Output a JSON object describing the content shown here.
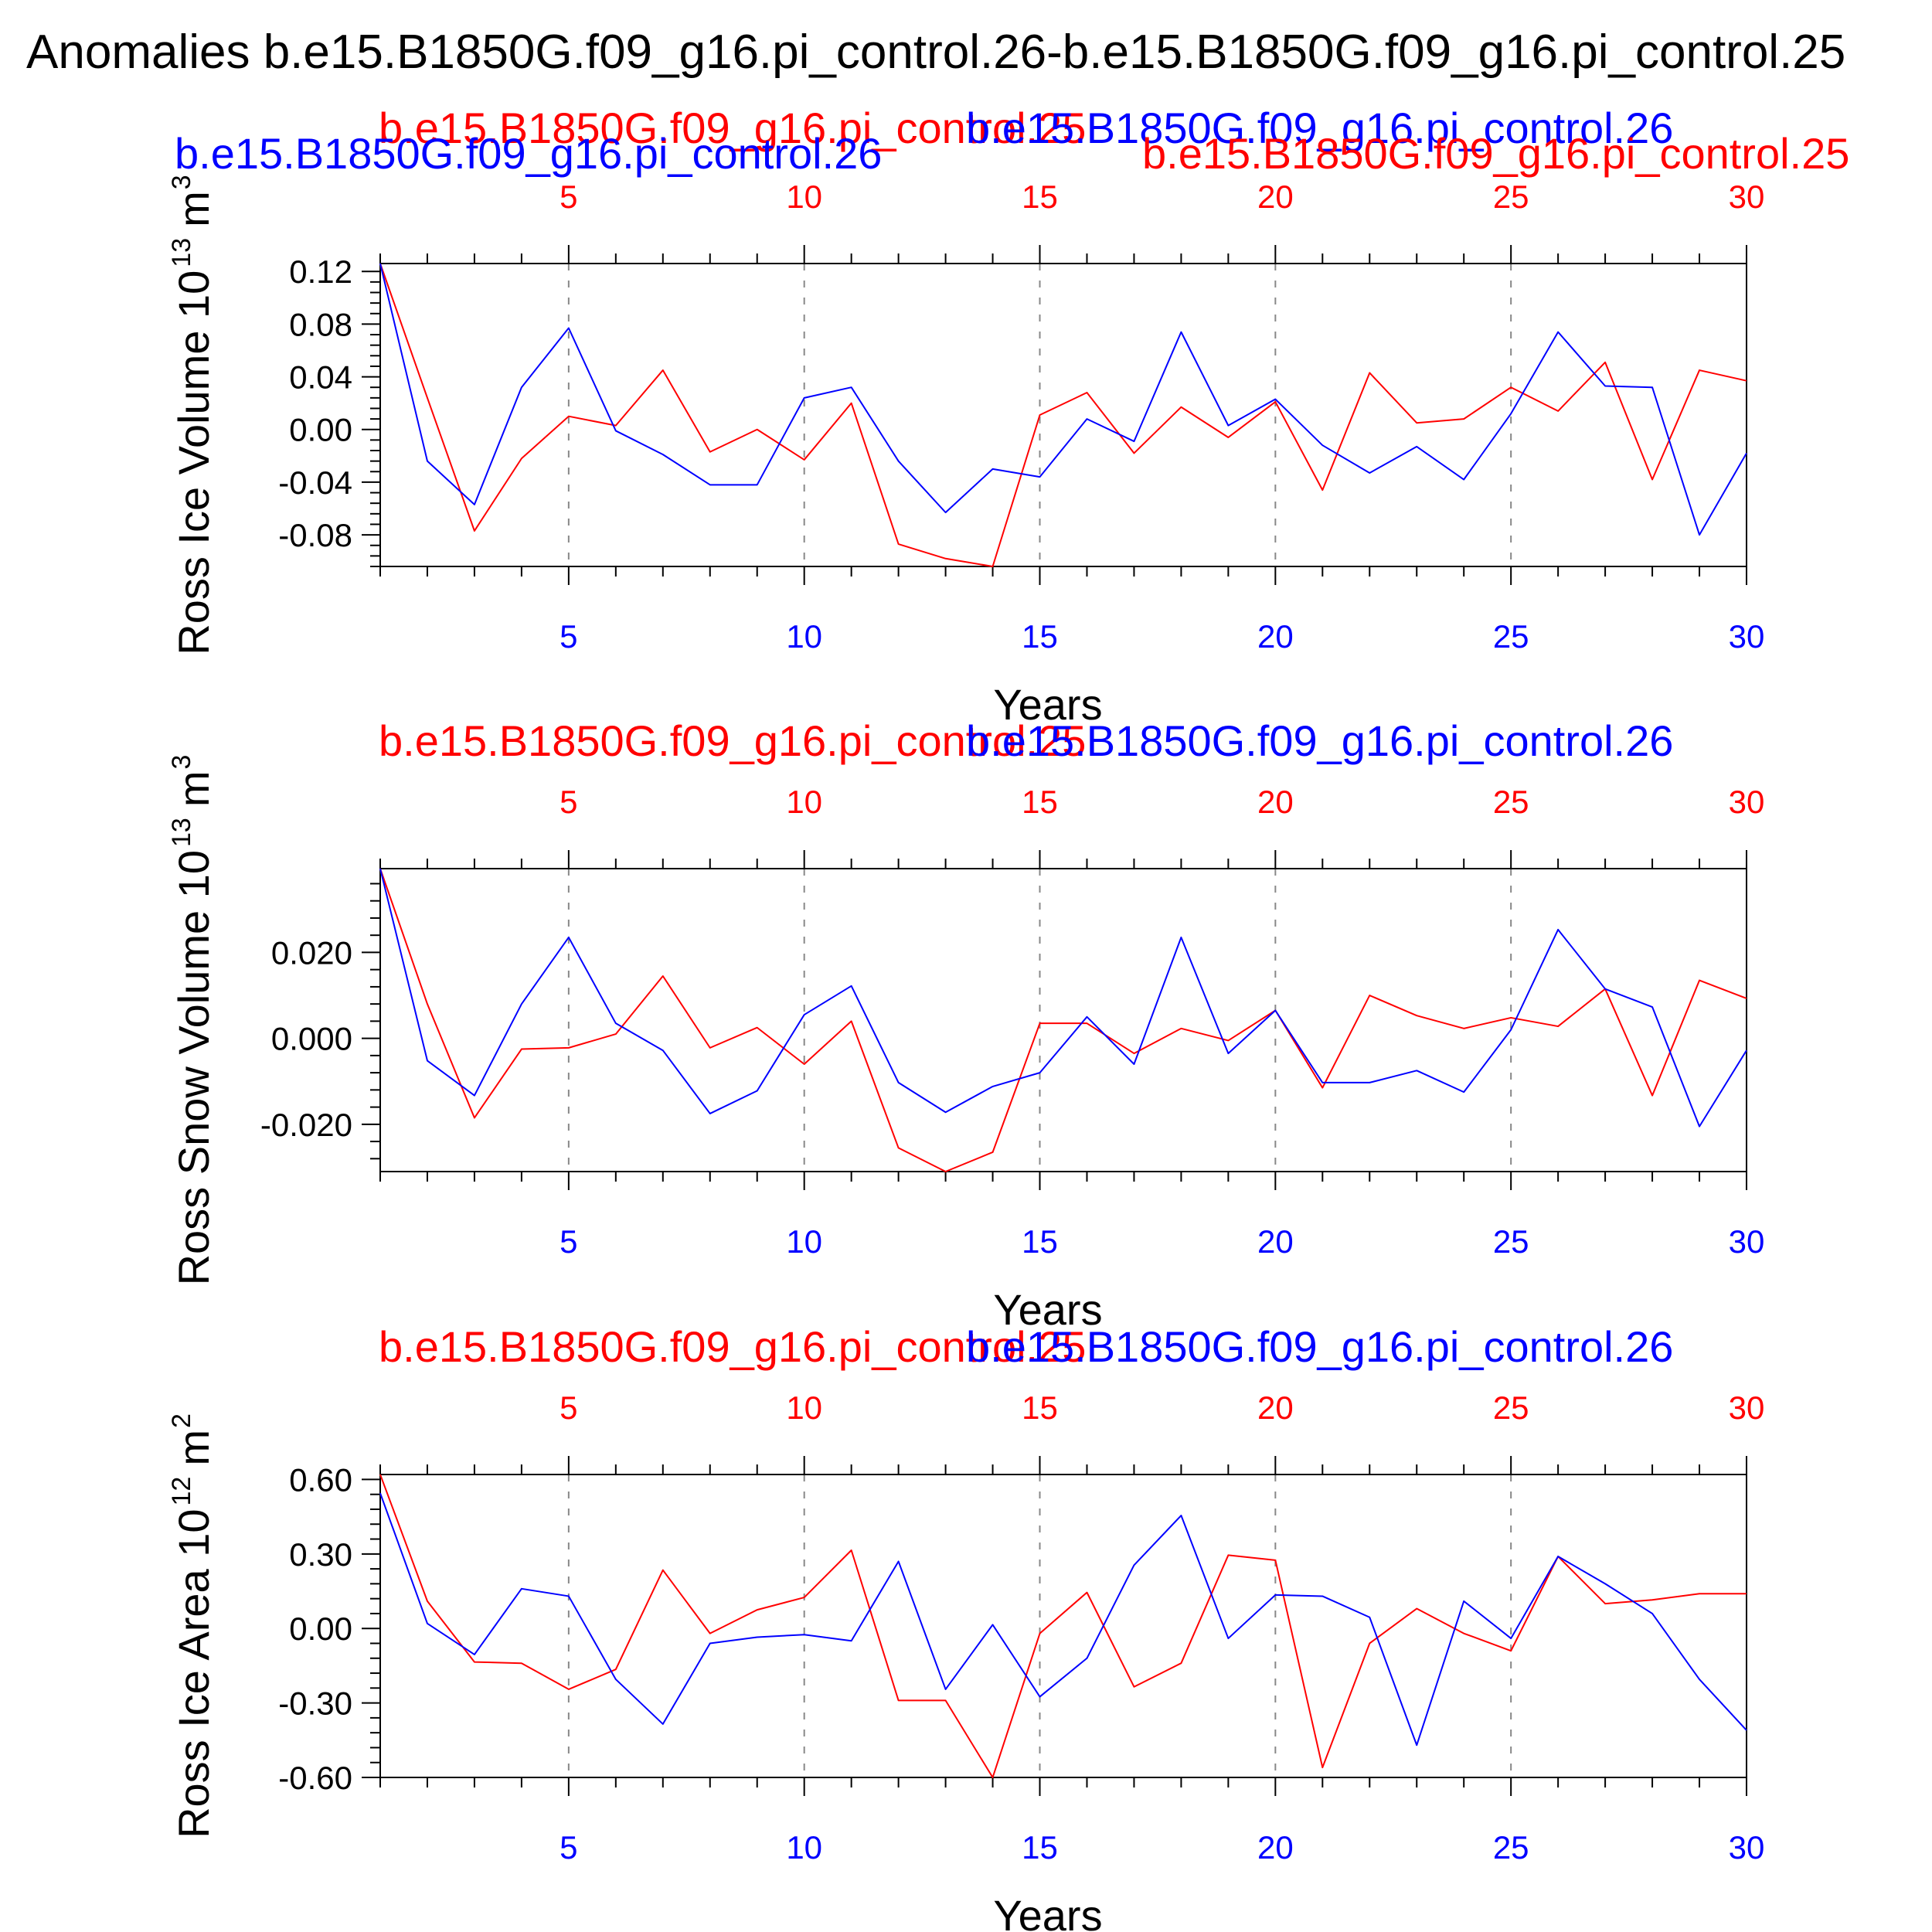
{
  "figure": {
    "title": "Anomalies b.e15.B1850G.f09_g16.pi_control.26-b.e15.B1850G.f09_g16.pi_control.25"
  },
  "colors": {
    "series_a": "#ff0000",
    "series_b": "#0000ff",
    "axes": "#000000",
    "grid": "#888888"
  },
  "chart_data": [
    {
      "type": "line",
      "ylabel": "Ross Ice Volume 10",
      "ylabel_exp": "13",
      "ylabel_unit": "m",
      "ylabel_unit_exp": "3",
      "xlabel": "Years",
      "x": [
        1,
        2,
        3,
        4,
        5,
        6,
        7,
        8,
        9,
        10,
        11,
        12,
        13,
        14,
        15,
        16,
        17,
        18,
        19,
        20,
        21,
        22,
        23,
        24,
        25,
        26,
        27,
        28,
        29,
        30
      ],
      "xlim": [
        1,
        30
      ],
      "ylim": [
        -0.104,
        0.126
      ],
      "yticks": [
        -0.08,
        -0.04,
        0.0,
        0.04,
        0.08,
        0.12
      ],
      "ytick_labels": [
        "-0.08",
        "-0.04",
        "0.00",
        "0.04",
        "0.08",
        "0.12"
      ],
      "xticks": [
        5,
        10,
        15,
        20,
        25,
        30
      ],
      "xtick_labels": [
        "5",
        "10",
        "15",
        "20",
        "25",
        "30"
      ],
      "grid": "vertical dashed at major x ticks",
      "series": [
        {
          "name": "b.e15.B1850G.f09_g16.pi_control.25",
          "color": "#ff0000",
          "values": [
            0.126,
            0.024,
            -0.077,
            -0.022,
            0.01,
            0.003,
            0.045,
            -0.017,
            0.0,
            -0.023,
            0.02,
            -0.087,
            -0.098,
            -0.104,
            0.011,
            0.028,
            -0.018,
            0.017,
            -0.006,
            0.021,
            -0.046,
            0.043,
            0.005,
            0.008,
            0.032,
            0.014,
            0.051,
            -0.038,
            0.045,
            0.037
          ]
        },
        {
          "name": "b.e15.B1850G.f09_g16.pi_control.26",
          "color": "#0000ff",
          "values": [
            0.126,
            -0.024,
            -0.057,
            0.032,
            0.077,
            -0.001,
            -0.019,
            -0.042,
            -0.042,
            0.024,
            0.032,
            -0.024,
            -0.063,
            -0.03,
            -0.036,
            0.008,
            -0.009,
            0.074,
            0.003,
            0.023,
            -0.012,
            -0.033,
            -0.013,
            -0.038,
            0.012,
            0.074,
            0.033,
            0.032,
            -0.08,
            -0.018
          ]
        }
      ],
      "legend": [
        "b.e15.B1850G.f09_g16.pi_control.25",
        "b.e15.B1850G.f09_g16.pi_control.26"
      ]
    },
    {
      "type": "line",
      "ylabel": "Ross Snow Volume 10",
      "ylabel_exp": "13",
      "ylabel_unit": "m",
      "ylabel_unit_exp": "3",
      "xlabel": "Years",
      "x": [
        1,
        2,
        3,
        4,
        5,
        6,
        7,
        8,
        9,
        10,
        11,
        12,
        13,
        14,
        15,
        16,
        17,
        18,
        19,
        20,
        21,
        22,
        23,
        24,
        25,
        26,
        27,
        28,
        29,
        30
      ],
      "xlim": [
        1,
        30
      ],
      "ylim": [
        -0.031,
        0.0395
      ],
      "yticks": [
        -0.02,
        0.0,
        0.02
      ],
      "ytick_labels": [
        "-0.020",
        "0.000",
        "0.020"
      ],
      "xticks": [
        5,
        10,
        15,
        20,
        25,
        30
      ],
      "xtick_labels": [
        "5",
        "10",
        "15",
        "20",
        "25",
        "30"
      ],
      "grid": "vertical dashed at major x ticks",
      "series": [
        {
          "name": "b.e15.B1850G.f09_g16.pi_control.25",
          "color": "#ff0000",
          "values": [
            0.0395,
            0.008,
            -0.0185,
            -0.0025,
            -0.0022,
            0.001,
            0.0145,
            -0.0022,
            0.0025,
            -0.006,
            0.004,
            -0.0255,
            -0.031,
            -0.0265,
            0.0035,
            0.0035,
            -0.0035,
            0.0023,
            -0.0005,
            0.0065,
            -0.0115,
            0.01,
            0.0053,
            0.0023,
            0.0048,
            0.0028,
            0.0115,
            -0.0133,
            0.0135,
            0.0093
          ]
        },
        {
          "name": "b.e15.B1850G.f09_g16.pi_control.26",
          "color": "#0000ff",
          "values": [
            0.0395,
            -0.0052,
            -0.0133,
            0.008,
            0.0235,
            0.0035,
            -0.0028,
            -0.0175,
            -0.0122,
            0.0055,
            0.0122,
            -0.0103,
            -0.0172,
            -0.0112,
            -0.008,
            0.005,
            -0.006,
            0.0235,
            -0.0035,
            0.0065,
            -0.0103,
            -0.0103,
            -0.0075,
            -0.0125,
            0.002,
            0.0253,
            0.0115,
            0.0073,
            -0.0205,
            -0.0028
          ]
        }
      ],
      "legend": [
        "b.e15.B1850G.f09_g16.pi_control.25",
        "b.e15.B1850G.f09_g16.pi_control.26"
      ]
    },
    {
      "type": "line",
      "ylabel": "Ross Ice Area 10",
      "ylabel_exp": "12",
      "ylabel_unit": "m",
      "ylabel_unit_exp": "2",
      "xlabel": "Years",
      "x": [
        1,
        2,
        3,
        4,
        5,
        6,
        7,
        8,
        9,
        10,
        11,
        12,
        13,
        14,
        15,
        16,
        17,
        18,
        19,
        20,
        21,
        22,
        23,
        24,
        25,
        26,
        27,
        28,
        29,
        30
      ],
      "xlim": [
        1,
        30
      ],
      "ylim": [
        -0.6,
        0.62
      ],
      "yticks": [
        -0.6,
        -0.3,
        0.0,
        0.3,
        0.6
      ],
      "ytick_labels": [
        "-0.60",
        "-0.30",
        "0.00",
        "0.30",
        "0.60"
      ],
      "xticks": [
        5,
        10,
        15,
        20,
        25,
        30
      ],
      "xtick_labels": [
        "5",
        "10",
        "15",
        "20",
        "25",
        "30"
      ],
      "grid": "vertical dashed at major x ticks",
      "series": [
        {
          "name": "b.e15.B1850G.f09_g16.pi_control.25",
          "color": "#ff0000",
          "values": [
            0.62,
            0.11,
            -0.135,
            -0.14,
            -0.245,
            -0.165,
            0.235,
            -0.02,
            0.075,
            0.125,
            0.315,
            -0.29,
            -0.29,
            -0.6,
            -0.02,
            0.145,
            -0.235,
            -0.14,
            0.295,
            0.275,
            -0.56,
            -0.06,
            0.08,
            -0.02,
            -0.09,
            0.29,
            0.1,
            0.115,
            0.14,
            0.14
          ]
        },
        {
          "name": "b.e15.B1850G.f09_g16.pi_control.26",
          "color": "#0000ff",
          "values": [
            0.545,
            0.02,
            -0.105,
            0.16,
            0.13,
            -0.205,
            -0.385,
            -0.06,
            -0.035,
            -0.025,
            -0.05,
            0.27,
            -0.245,
            0.015,
            -0.275,
            -0.12,
            0.255,
            0.455,
            -0.04,
            0.135,
            0.13,
            0.045,
            -0.47,
            0.11,
            -0.04,
            0.29,
            0.18,
            0.06,
            -0.205,
            -0.41
          ]
        }
      ],
      "legend": [
        "b.e15.B1850G.f09_g16.pi_control.25",
        "b.e15.B1850G.f09_g16.pi_control.26"
      ]
    }
  ]
}
